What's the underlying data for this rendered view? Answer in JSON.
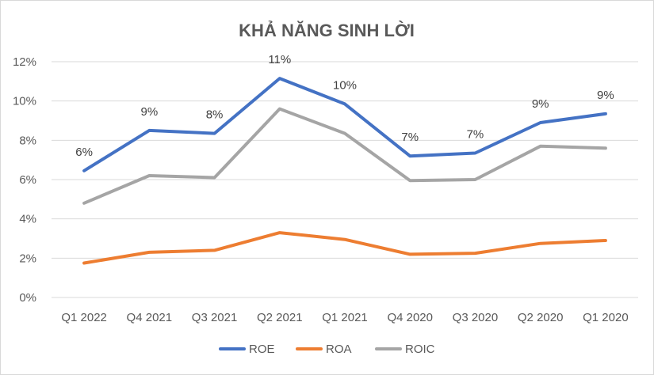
{
  "chart_data": {
    "type": "line",
    "title": "KHẢ NĂNG SINH LỜI",
    "categories": [
      "Q1 2022",
      "Q4 2021",
      "Q3 2021",
      "Q2 2021",
      "Q1 2021",
      "Q4 2020",
      "Q3 2020",
      "Q2 2020",
      "Q1 2020"
    ],
    "y_ticks": [
      "0%",
      "2%",
      "4%",
      "6%",
      "8%",
      "10%",
      "12%"
    ],
    "ylim": [
      0,
      12
    ],
    "grid": true,
    "legend_position": "bottom",
    "series": [
      {
        "name": "ROE",
        "color": "#4472C4",
        "values": [
          6.45,
          8.5,
          8.35,
          11.15,
          9.85,
          7.2,
          7.35,
          8.9,
          9.35
        ],
        "data_labels": [
          "6%",
          "9%",
          "8%",
          "11%",
          "10%",
          "7%",
          "7%",
          "9%",
          "9%"
        ]
      },
      {
        "name": "ROA",
        "color": "#ED7D31",
        "values": [
          1.75,
          2.3,
          2.4,
          3.3,
          2.95,
          2.2,
          2.25,
          2.75,
          2.9
        ]
      },
      {
        "name": "ROIC",
        "color": "#A5A5A5",
        "values": [
          4.8,
          6.2,
          6.1,
          9.6,
          8.35,
          5.95,
          6.0,
          7.7,
          7.6
        ]
      }
    ]
  }
}
